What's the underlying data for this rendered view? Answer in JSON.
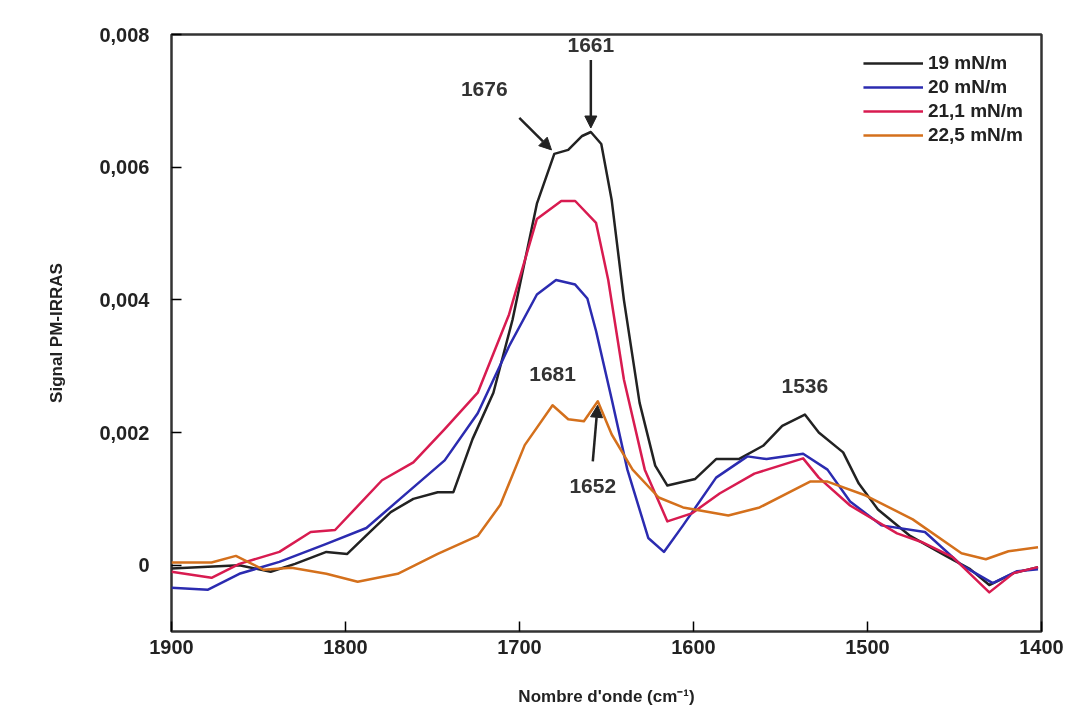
{
  "chart_data": {
    "type": "line",
    "xlabel": "Nombre d'onde (cm⁻¹)",
    "ylabel": "Signal PM-IRRAS",
    "xlim": [
      1900,
      1400
    ],
    "xticks": [
      1900,
      1800,
      1700,
      1600,
      1500,
      1400
    ],
    "ylim": [
      -0.001,
      0.008
    ],
    "yticks": [
      {
        "value": 0,
        "label": "0"
      },
      {
        "value": 0.002,
        "label": "0,002"
      },
      {
        "value": 0.004,
        "label": "0,004"
      },
      {
        "value": 0.006,
        "label": "0,006"
      },
      {
        "value": 0.008,
        "label": "0,008"
      }
    ],
    "grid": false,
    "legend": "top right",
    "line_style": "solid",
    "marker": "none",
    "series": [
      {
        "name": "19 mN/m",
        "color": "#222222",
        "x": [
          1900,
          1861,
          1843,
          1829,
          1811,
          1799,
          1788,
          1774,
          1761,
          1747,
          1738,
          1727,
          1715,
          1704,
          1690,
          1680,
          1672,
          1664,
          1659,
          1653,
          1647,
          1640,
          1631,
          1622,
          1615,
          1599,
          1587,
          1574,
          1560,
          1549,
          1536,
          1528,
          1514,
          1505,
          1494,
          1476,
          1455,
          1441,
          1430,
          1416,
          1402
        ],
        "values": [
          -5e-05,
          0,
          -0.0001,
          2e-05,
          0.0002,
          0.00017,
          0.00045,
          0.0008,
          0.001,
          0.0011,
          0.0011,
          0.0019,
          0.0026,
          0.0037,
          0.00545,
          0.0062,
          0.00626,
          0.00647,
          0.00653,
          0.00635,
          0.0055,
          0.004,
          0.00245,
          0.0015,
          0.0012,
          0.0013,
          0.0016,
          0.0016,
          0.0018,
          0.0021,
          0.00227,
          0.002,
          0.0017,
          0.00123,
          0.00084,
          0.00045,
          0.00014,
          -6e-05,
          -0.0003,
          -0.00012,
          -3e-05
        ]
      },
      {
        "name": "20 mN/m",
        "color": "#2b2bb0",
        "x": [
          1900,
          1879,
          1861,
          1838,
          1811,
          1788,
          1766,
          1743,
          1724,
          1706,
          1690,
          1679,
          1668,
          1661,
          1656,
          1647,
          1638,
          1626,
          1617,
          1606,
          1587,
          1569,
          1558,
          1537,
          1523,
          1510,
          1492,
          1467,
          1446,
          1428,
          1414,
          1402
        ],
        "values": [
          -0.00034,
          -0.00037,
          -0.00013,
          5e-05,
          0.00032,
          0.00056,
          0.00106,
          0.00158,
          0.00229,
          0.0033,
          0.00408,
          0.0043,
          0.00423,
          0.00402,
          0.00353,
          0.0025,
          0.00144,
          0.00041,
          0.0002,
          0.0006,
          0.00132,
          0.00164,
          0.0016,
          0.00168,
          0.00144,
          0.00096,
          0.0006,
          0.0005,
          0,
          -0.00027,
          -9e-05,
          -6e-05
        ]
      },
      {
        "name": "21,1 mN/m",
        "color": "#d81b50",
        "x": [
          1900,
          1877,
          1861,
          1838,
          1820,
          1806,
          1779,
          1761,
          1743,
          1724,
          1706,
          1690,
          1676,
          1668,
          1656,
          1649,
          1640,
          1628,
          1615,
          1601,
          1585,
          1565,
          1537,
          1528,
          1510,
          1483,
          1469,
          1451,
          1430,
          1416,
          1402
        ],
        "values": [
          -0.0001,
          -0.00019,
          2e-05,
          0.0002,
          0.0005,
          0.00053,
          0.00128,
          0.00155,
          0.00205,
          0.0026,
          0.00378,
          0.00522,
          0.00549,
          0.00549,
          0.00516,
          0.0043,
          0.0028,
          0.00144,
          0.00066,
          0.00078,
          0.00108,
          0.00138,
          0.00161,
          0.00132,
          0.0009,
          0.00048,
          0.00035,
          0.00012,
          -0.00041,
          -0.00012,
          -3e-05
        ]
      },
      {
        "name": "22,5 mN/m",
        "color": "#d4701c",
        "x": [
          1900,
          1877,
          1863,
          1847,
          1831,
          1811,
          1793,
          1770,
          1747,
          1724,
          1711,
          1697,
          1681,
          1672,
          1663,
          1655,
          1647,
          1635,
          1620,
          1606,
          1580,
          1562,
          1533,
          1523,
          1501,
          1474,
          1446,
          1432,
          1419,
          1402
        ],
        "values": [
          4e-05,
          4e-05,
          0.00014,
          -7e-05,
          -4e-05,
          -0.00013,
          -0.00025,
          -0.00013,
          0.00017,
          0.00044,
          0.00091,
          0.00181,
          0.00241,
          0.0022,
          0.00217,
          0.00247,
          0.00197,
          0.00144,
          0.00102,
          0.00087,
          0.00075,
          0.00087,
          0.00126,
          0.00126,
          0.00105,
          0.00069,
          0.00018,
          9e-05,
          0.00021,
          0.00027
        ]
      }
    ],
    "annotations": [
      {
        "text": "1676",
        "x": 1680,
        "y": 0.0062
      },
      {
        "text": "1661",
        "x": 1659,
        "y": 0.00653
      },
      {
        "text": "1681",
        "x": 1681,
        "y": 0.00241
      },
      {
        "text": "1652",
        "x": 1655,
        "y": 0.00247
      },
      {
        "text": "1536",
        "x": 1536,
        "y": 0.00227
      }
    ]
  }
}
